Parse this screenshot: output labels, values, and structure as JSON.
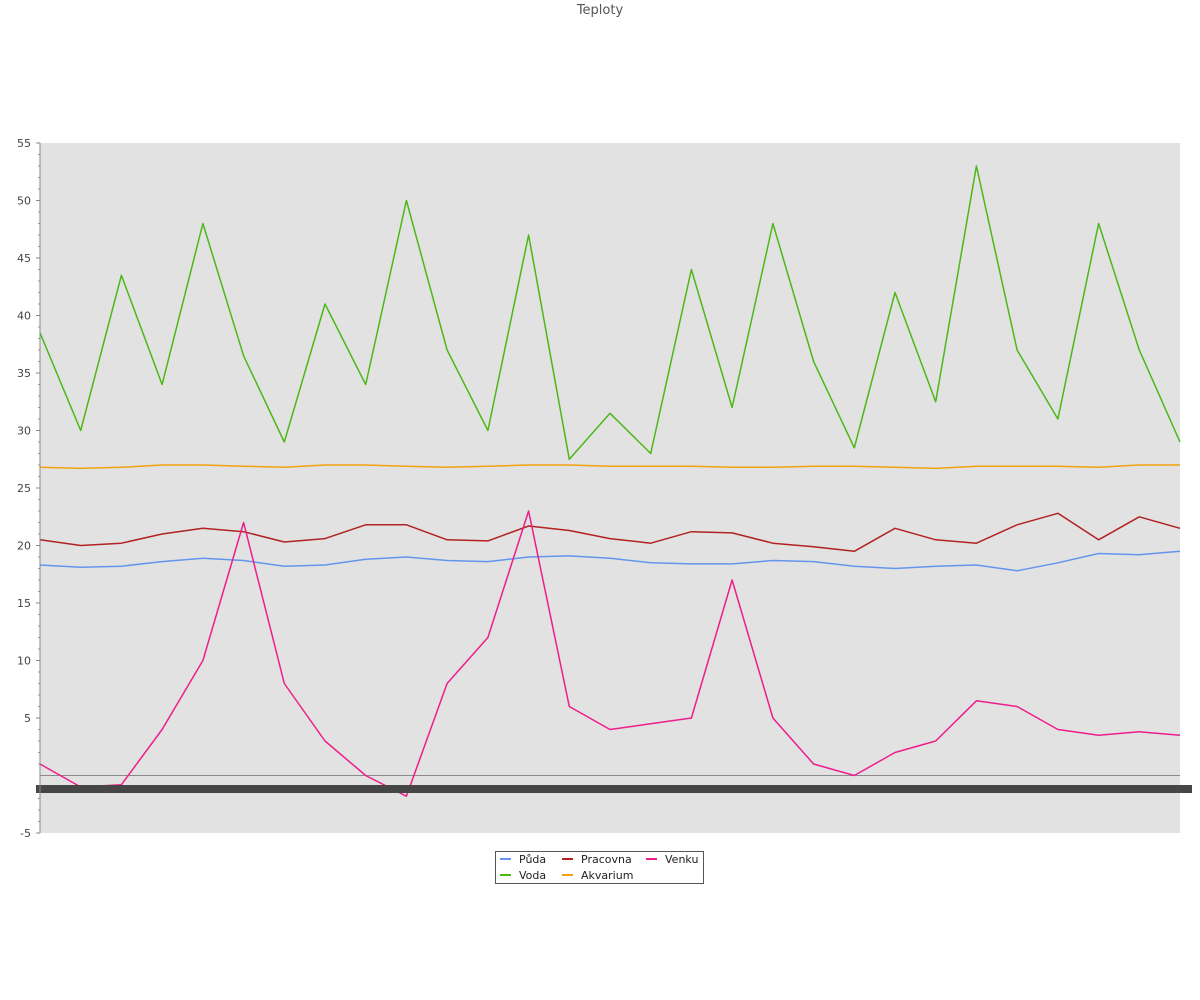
{
  "chart_data": {
    "type": "line",
    "title": "Teploty",
    "xlabel": "",
    "ylabel": "",
    "ylim": [
      -5,
      55
    ],
    "yticks": [
      -5,
      5,
      10,
      15,
      20,
      25,
      30,
      35,
      40,
      45,
      50,
      55
    ],
    "grid": false,
    "legend_position": "bottom",
    "x_tick_labels_unreadable": true,
    "x": [
      0,
      0.5,
      1,
      1.5,
      2,
      2.5,
      3,
      3.5,
      4,
      4.5,
      5,
      5.5,
      6,
      6.5,
      7,
      7.5,
      8,
      8.5,
      9,
      9.5,
      10,
      10.5,
      11,
      11.5,
      12,
      12.5,
      13,
      13.5,
      14
    ],
    "series": [
      {
        "name": "Půda",
        "color": "#6495ed",
        "values": [
          18.3,
          18.1,
          18.2,
          18.6,
          18.9,
          18.7,
          18.2,
          18.3,
          18.8,
          19.0,
          18.7,
          18.6,
          19.0,
          19.1,
          18.9,
          18.5,
          18.4,
          18.4,
          18.7,
          18.6,
          18.2,
          18.0,
          18.2,
          18.3,
          17.8,
          18.5,
          19.3,
          19.2,
          19.5
        ]
      },
      {
        "name": "Voda",
        "color": "#4cb816",
        "values": [
          38.5,
          30.0,
          43.5,
          34.0,
          48.0,
          36.5,
          29.0,
          41.0,
          34.0,
          50.0,
          37.0,
          30.0,
          47.0,
          27.5,
          31.5,
          28.0,
          44.0,
          32.0,
          48.0,
          36.0,
          28.5,
          42.0,
          32.5,
          53.0,
          37.0,
          31.0,
          48.0,
          37.0,
          29.0
        ]
      },
      {
        "name": "Pracovna",
        "color": "#b22222",
        "values": [
          20.5,
          20.0,
          20.2,
          21.0,
          21.5,
          21.2,
          20.3,
          20.6,
          21.8,
          21.8,
          20.5,
          20.4,
          21.7,
          21.3,
          20.6,
          20.2,
          21.2,
          21.1,
          20.2,
          19.9,
          19.5,
          21.5,
          20.5,
          20.2,
          21.8,
          22.8,
          20.5,
          22.5,
          21.5
        ]
      },
      {
        "name": "Akvarium",
        "color": "#f2a20f",
        "values": [
          26.8,
          26.7,
          26.8,
          27.0,
          27.0,
          26.9,
          26.8,
          27.0,
          27.0,
          26.9,
          26.8,
          26.9,
          27.0,
          27.0,
          26.9,
          26.9,
          26.9,
          26.8,
          26.8,
          26.9,
          26.9,
          26.8,
          26.7,
          26.9,
          26.9,
          26.9,
          26.8,
          27.0,
          27.0
        ]
      },
      {
        "name": "Venku",
        "color": "#ee1d8c",
        "values": [
          1.0,
          -1.0,
          -0.8,
          4.0,
          10.0,
          22.0,
          8.0,
          3.0,
          0.0,
          -1.8,
          8.0,
          12.0,
          23.0,
          6.0,
          4.0,
          4.5,
          5.0,
          17.0,
          5.0,
          1.0,
          0.0,
          2.0,
          3.0,
          6.5,
          6.0,
          4.0,
          3.5,
          3.8,
          3.5
        ]
      }
    ]
  }
}
